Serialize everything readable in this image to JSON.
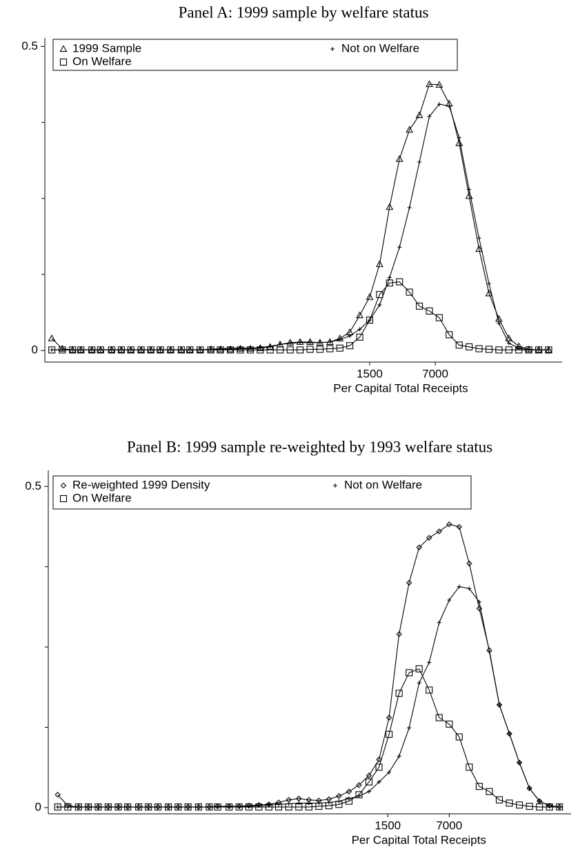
{
  "chart_data": [
    {
      "type": "line",
      "title": "Panel A: 1999 sample by welfare status",
      "xlabel": "Per Capital Total Receipts",
      "xscale": "log",
      "xlim": [
        0.73,
        137700
      ],
      "xticks": [
        1500,
        7000
      ],
      "ylim": [
        -0.019,
        0.514
      ],
      "yticks": [
        0,
        0.5
      ],
      "yminorticks": [
        0.125,
        0.25,
        0.375
      ],
      "legend": "upper left",
      "x": [
        0.86,
        1.1,
        1.4,
        1.7,
        2.2,
        2.7,
        3.5,
        4.4,
        5.5,
        7,
        8.8,
        11,
        14,
        18,
        22,
        28,
        36,
        45,
        57,
        72,
        91,
        115,
        145,
        183,
        232,
        293,
        370,
        467,
        590,
        745,
        940,
        1188,
        1500,
        1895,
        2393,
        3022,
        3817,
        4821,
        6089,
        7690,
        9712,
        12267,
        15493,
        19568,
        24714,
        31213,
        39422,
        49790,
        62885,
        79424,
        100312
      ],
      "series": [
        {
          "name": "1999 Sample",
          "color": "#000000",
          "marker": "triangle",
          "values": [
            0.02,
            0.003,
            0.001,
            0.001,
            0.001,
            0.001,
            0.001,
            0.001,
            0.001,
            0.001,
            0.001,
            0.001,
            0.001,
            0.001,
            0.001,
            0.001,
            0.002,
            0.002,
            0.002,
            0.003,
            0.003,
            0.004,
            0.006,
            0.01,
            0.013,
            0.014,
            0.014,
            0.013,
            0.014,
            0.02,
            0.03,
            0.058,
            0.088,
            0.142,
            0.236,
            0.315,
            0.363,
            0.387,
            0.438,
            0.437,
            0.406,
            0.341,
            0.254,
            0.167,
            0.094,
            0.052,
            0.02,
            0.007,
            0.002,
            0.001,
            0.001
          ]
        },
        {
          "name": "Not on Welfare",
          "color": "#000000",
          "marker": "plus",
          "values": [
            0.001,
            0.001,
            0.001,
            0.001,
            0.001,
            0.001,
            0.001,
            0.001,
            0.001,
            0.001,
            0.001,
            0.001,
            0.001,
            0.001,
            0.001,
            0.001,
            0.002,
            0.003,
            0.004,
            0.004,
            0.004,
            0.005,
            0.007,
            0.01,
            0.012,
            0.013,
            0.013,
            0.013,
            0.014,
            0.018,
            0.024,
            0.035,
            0.05,
            0.075,
            0.12,
            0.17,
            0.235,
            0.31,
            0.385,
            0.405,
            0.402,
            0.35,
            0.265,
            0.185,
            0.11,
            0.045,
            0.012,
            0.004,
            0.001,
            0.001,
            0.001
          ]
        },
        {
          "name": "On Welfare",
          "color": "#000000",
          "marker": "square",
          "values": [
            0.001,
            0.001,
            0.001,
            0.001,
            0.001,
            0.001,
            0.001,
            0.001,
            0.001,
            0.001,
            0.001,
            0.001,
            0.001,
            0.001,
            0.001,
            0.001,
            0.001,
            0.001,
            0.001,
            0.001,
            0.001,
            0.001,
            0.001,
            0.001,
            0.001,
            0.001,
            0.002,
            0.002,
            0.003,
            0.004,
            0.008,
            0.022,
            0.05,
            0.092,
            0.111,
            0.113,
            0.096,
            0.073,
            0.065,
            0.054,
            0.026,
            0.009,
            0.006,
            0.003,
            0.002,
            0.001,
            0.001,
            0.001,
            0.001,
            0.001,
            0.001
          ]
        }
      ]
    },
    {
      "type": "line",
      "title": "Panel B: 1999 sample re-weighted by 1993 welfare status",
      "xlabel": "Per Capital Total Receipts",
      "xscale": "log",
      "xlim": [
        0.3,
        149000
      ],
      "xticks": [
        1500,
        7000
      ],
      "ylim": [
        -0.0097,
        0.525
      ],
      "yticks": [
        0,
        0.5
      ],
      "yminorticks": [
        0.125,
        0.25,
        0.375
      ],
      "legend": "upper left",
      "x": [
        0.38,
        0.49,
        0.64,
        0.82,
        1.05,
        1.35,
        1.74,
        2.2,
        2.9,
        3.7,
        4.7,
        6.1,
        7.8,
        10,
        13,
        17,
        21,
        28,
        36,
        46,
        59,
        76,
        97,
        125,
        161,
        207,
        266,
        342,
        440,
        566,
        728,
        936,
        1204,
        1548,
        1991,
        2560,
        3292,
        4234,
        5445,
        7002,
        9005,
        11580,
        14892,
        19151,
        24628,
        31672,
        40730,
        52379,
        67359,
        86624,
        111398
      ],
      "series": [
        {
          "name": "Re-weighted 1999 Density",
          "color": "#000000",
          "marker": "diamond",
          "values": [
            0.02,
            0.003,
            0.001,
            0.001,
            0.001,
            0.001,
            0.001,
            0.001,
            0.001,
            0.001,
            0.001,
            0.001,
            0.001,
            0.001,
            0.001,
            0.001,
            0.002,
            0.002,
            0.002,
            0.003,
            0.004,
            0.005,
            0.008,
            0.012,
            0.014,
            0.012,
            0.011,
            0.013,
            0.018,
            0.025,
            0.035,
            0.05,
            0.075,
            0.14,
            0.27,
            0.35,
            0.405,
            0.42,
            0.43,
            0.441,
            0.437,
            0.38,
            0.31,
            0.245,
            0.16,
            0.115,
            0.07,
            0.03,
            0.01,
            0.003,
            0.001
          ]
        },
        {
          "name": "Not on Welfare",
          "color": "#000000",
          "marker": "plus",
          "values": [
            0.001,
            0.001,
            0.001,
            0.001,
            0.001,
            0.001,
            0.001,
            0.001,
            0.001,
            0.001,
            0.001,
            0.001,
            0.001,
            0.001,
            0.001,
            0.001,
            0.002,
            0.002,
            0.002,
            0.002,
            0.003,
            0.004,
            0.005,
            0.006,
            0.007,
            0.007,
            0.007,
            0.008,
            0.01,
            0.014,
            0.018,
            0.025,
            0.04,
            0.055,
            0.08,
            0.124,
            0.194,
            0.226,
            0.288,
            0.323,
            0.344,
            0.341,
            0.32,
            0.243,
            0.16,
            0.115,
            0.07,
            0.03,
            0.01,
            0.003,
            0.001
          ]
        },
        {
          "name": "On Welfare",
          "color": "#000000",
          "marker": "square",
          "values": [
            0.001,
            0.001,
            0.001,
            0.001,
            0.001,
            0.001,
            0.001,
            0.001,
            0.001,
            0.001,
            0.001,
            0.001,
            0.001,
            0.001,
            0.001,
            0.001,
            0.001,
            0.001,
            0.001,
            0.001,
            0.001,
            0.001,
            0.001,
            0.001,
            0.001,
            0.001,
            0.002,
            0.003,
            0.005,
            0.01,
            0.02,
            0.04,
            0.063,
            0.114,
            0.178,
            0.21,
            0.216,
            0.183,
            0.14,
            0.13,
            0.11,
            0.063,
            0.033,
            0.025,
            0.012,
            0.007,
            0.004,
            0.002,
            0.001,
            0.001,
            0.001
          ]
        }
      ]
    }
  ]
}
